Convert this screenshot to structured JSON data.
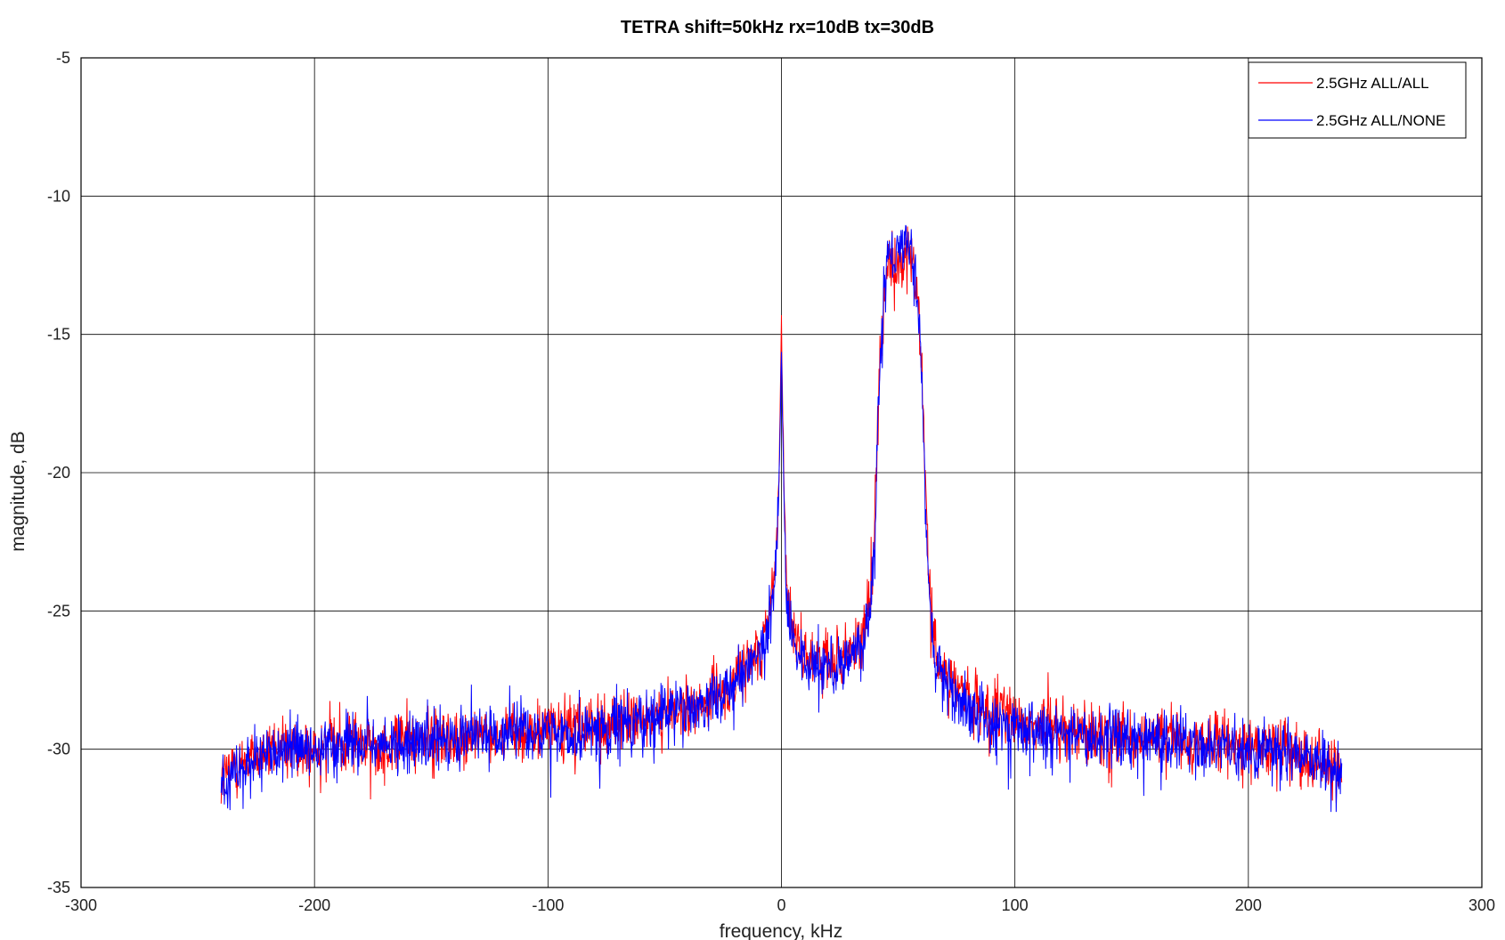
{
  "chart_data": {
    "type": "line",
    "title": "TETRA shift=50kHz rx=10dB tx=30dB",
    "xlabel": "frequency, kHz",
    "ylabel": "magnitude, dB",
    "xlim": [
      -300,
      300
    ],
    "ylim": [
      -35,
      -5
    ],
    "x_ticks": [
      -300,
      -200,
      -100,
      0,
      100,
      200,
      300
    ],
    "y_ticks": [
      -35,
      -30,
      -25,
      -20,
      -15,
      -10,
      -5
    ],
    "x_tick_labels": [
      "-300",
      "-200",
      "-100",
      "0",
      "100",
      "200",
      "300"
    ],
    "y_tick_labels": [
      "-35",
      "-30",
      "-25",
      "-20",
      "-15",
      "-10",
      "-5"
    ],
    "grid": true,
    "legend_position": "top-right",
    "series": [
      {
        "name": "2.5GHz ALL/ALL",
        "color": "#ff0000",
        "x": [
          -240,
          -230,
          -220,
          -210,
          -200,
          -190,
          -180,
          -170,
          -160,
          -150,
          -140,
          -130,
          -120,
          -110,
          -100,
          -90,
          -80,
          -70,
          -60,
          -50,
          -40,
          -30,
          -25,
          -20,
          -15,
          -10,
          -6,
          -4,
          -2,
          -1,
          0,
          1,
          2,
          4,
          6,
          10,
          15,
          20,
          25,
          30,
          35,
          38,
          40,
          42,
          44,
          46,
          48,
          50,
          52,
          54,
          56,
          58,
          60,
          62,
          64,
          66,
          70,
          75,
          80,
          90,
          100,
          110,
          120,
          130,
          140,
          150,
          160,
          170,
          180,
          190,
          200,
          210,
          220,
          230,
          240
        ],
        "y": [
          -31.0,
          -30.4,
          -30.1,
          -30.0,
          -29.9,
          -29.8,
          -29.8,
          -29.8,
          -29.7,
          -29.6,
          -29.6,
          -29.5,
          -29.5,
          -29.4,
          -29.3,
          -29.3,
          -29.2,
          -29.0,
          -28.9,
          -28.7,
          -28.5,
          -28.2,
          -27.9,
          -27.5,
          -27.0,
          -26.4,
          -25.5,
          -24.5,
          -22.5,
          -20.0,
          -14.5,
          -20.0,
          -23.5,
          -25.3,
          -26.2,
          -26.6,
          -26.8,
          -26.8,
          -26.7,
          -26.4,
          -25.8,
          -24.5,
          -21.5,
          -16.0,
          -13.6,
          -12.4,
          -12.8,
          -12.1,
          -12.6,
          -12.3,
          -12.8,
          -13.5,
          -16.0,
          -21.0,
          -25.0,
          -26.4,
          -27.2,
          -27.8,
          -28.3,
          -28.7,
          -28.9,
          -29.1,
          -29.3,
          -29.4,
          -29.5,
          -29.6,
          -29.6,
          -29.7,
          -29.8,
          -29.8,
          -29.9,
          -30.0,
          -30.1,
          -30.4,
          -30.8
        ]
      },
      {
        "name": "2.5GHz ALL/NONE",
        "color": "#0000ff",
        "x": [
          -240,
          -230,
          -220,
          -210,
          -200,
          -190,
          -180,
          -170,
          -160,
          -150,
          -140,
          -130,
          -120,
          -110,
          -100,
          -90,
          -80,
          -70,
          -60,
          -50,
          -40,
          -30,
          -25,
          -20,
          -15,
          -10,
          -6,
          -4,
          -2,
          -1,
          0,
          1,
          2,
          4,
          6,
          10,
          15,
          20,
          25,
          30,
          35,
          38,
          40,
          42,
          44,
          46,
          48,
          50,
          52,
          54,
          56,
          58,
          60,
          62,
          64,
          66,
          70,
          75,
          80,
          90,
          100,
          110,
          120,
          130,
          140,
          150,
          160,
          170,
          180,
          190,
          200,
          210,
          220,
          230,
          240
        ],
        "y": [
          -31.2,
          -30.5,
          -30.2,
          -30.0,
          -30.0,
          -29.9,
          -29.9,
          -29.8,
          -29.7,
          -29.7,
          -29.6,
          -29.6,
          -29.5,
          -29.5,
          -29.4,
          -29.4,
          -29.3,
          -29.1,
          -29.0,
          -28.8,
          -28.6,
          -28.3,
          -28.0,
          -27.6,
          -27.1,
          -26.5,
          -25.6,
          -24.8,
          -22.8,
          -20.5,
          -15.5,
          -20.5,
          -23.8,
          -25.5,
          -26.5,
          -26.9,
          -27.1,
          -27.1,
          -27.0,
          -26.7,
          -26.0,
          -24.8,
          -22.0,
          -16.5,
          -13.4,
          -12.0,
          -12.3,
          -11.7,
          -12.0,
          -11.6,
          -12.2,
          -13.3,
          -16.5,
          -22.0,
          -25.5,
          -26.8,
          -27.6,
          -28.1,
          -28.5,
          -28.9,
          -29.1,
          -29.3,
          -29.4,
          -29.5,
          -29.6,
          -29.7,
          -29.7,
          -29.8,
          -29.8,
          -29.9,
          -30.0,
          -30.1,
          -30.2,
          -30.5,
          -31.0
        ]
      }
    ],
    "annotations": []
  }
}
